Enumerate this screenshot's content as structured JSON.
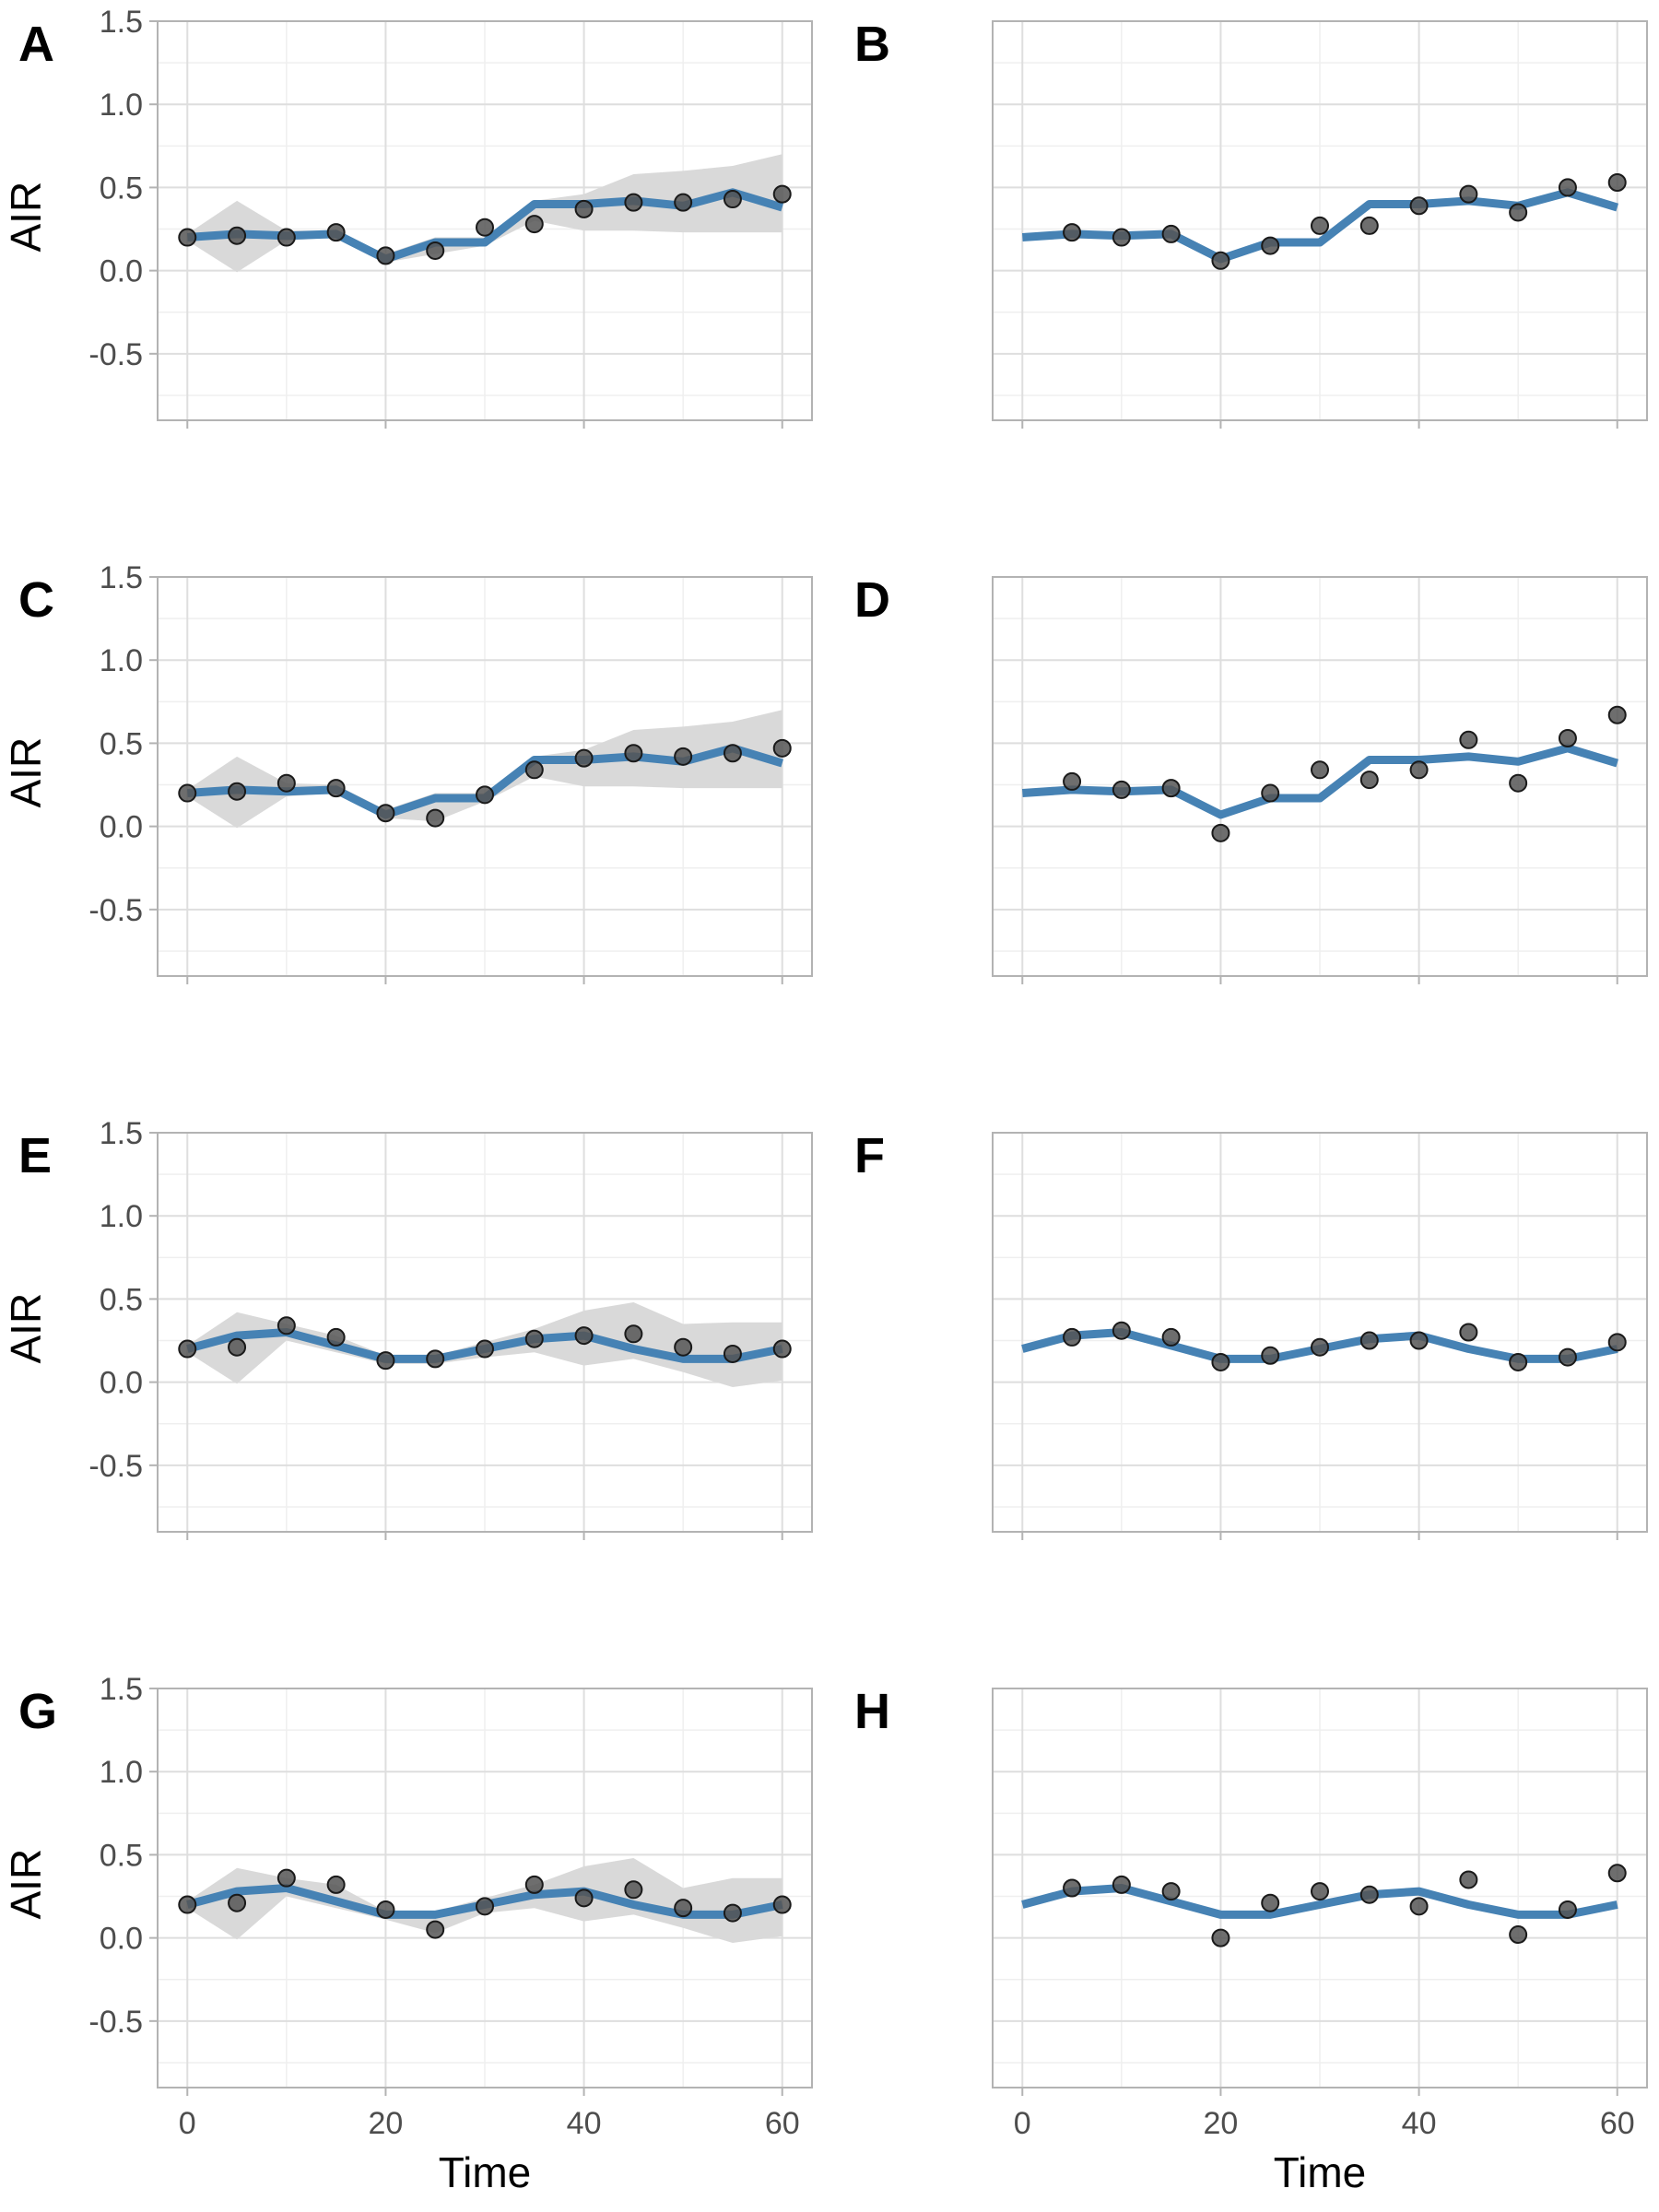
{
  "layout": {
    "columns": 2,
    "rows": 4
  },
  "colors": {
    "line": "#4682b4",
    "ribbon": "#d9d9d9",
    "point_fill": "#555555",
    "point_stroke": "#1a1a1a",
    "grid_major": "#dedede",
    "grid_minor": "#efefef",
    "panel_border": "#b3b3b3"
  },
  "chart_data": [
    {
      "panel": "A",
      "type": "line",
      "ylabel": "AIR",
      "xlabel": "",
      "ylim": [
        -0.9,
        1.5
      ],
      "xlim": [
        -3,
        63
      ],
      "yticks": [
        "-0.5",
        "0.0",
        "0.5",
        "1.0",
        "1.5"
      ],
      "xticks": [],
      "x": [
        0,
        5,
        10,
        15,
        20,
        25,
        30,
        35,
        40,
        45,
        50,
        55,
        60
      ],
      "line": [
        0.2,
        0.22,
        0.21,
        0.22,
        0.07,
        0.17,
        0.17,
        0.4,
        0.4,
        0.42,
        0.39,
        0.47,
        0.38
      ],
      "ribbon_lower": [
        0.18,
        -0.01,
        0.18,
        0.2,
        0.05,
        0.1,
        0.15,
        0.3,
        0.24,
        0.24,
        0.23,
        0.23,
        0.23
      ],
      "ribbon_upper": [
        0.22,
        0.42,
        0.24,
        0.24,
        0.1,
        0.2,
        0.2,
        0.42,
        0.46,
        0.58,
        0.6,
        0.63,
        0.7
      ],
      "points": [
        0.2,
        0.21,
        0.2,
        0.23,
        0.09,
        0.12,
        0.26,
        0.28,
        0.37,
        0.41,
        0.41,
        0.43,
        0.46
      ]
    },
    {
      "panel": "B",
      "type": "line",
      "ylabel": "",
      "xlabel": "",
      "ylim": [
        -0.9,
        1.5
      ],
      "xlim": [
        -3,
        63
      ],
      "yticks": [],
      "xticks": [],
      "x": [
        0,
        5,
        10,
        15,
        20,
        25,
        30,
        35,
        40,
        45,
        50,
        55,
        60
      ],
      "line": [
        0.2,
        0.22,
        0.21,
        0.22,
        0.07,
        0.17,
        0.17,
        0.4,
        0.4,
        0.42,
        0.39,
        0.47,
        0.38
      ],
      "ribbon_lower": [],
      "ribbon_upper": [],
      "points": [
        null,
        0.23,
        0.2,
        0.22,
        0.06,
        0.15,
        0.27,
        0.27,
        0.39,
        0.46,
        0.35,
        0.5,
        0.53
      ]
    },
    {
      "panel": "C",
      "type": "line",
      "ylabel": "AIR",
      "xlabel": "",
      "ylim": [
        -0.9,
        1.5
      ],
      "xlim": [
        -3,
        63
      ],
      "yticks": [
        "-0.5",
        "0.0",
        "0.5",
        "1.0",
        "1.5"
      ],
      "xticks": [],
      "x": [
        0,
        5,
        10,
        15,
        20,
        25,
        30,
        35,
        40,
        45,
        50,
        55,
        60
      ],
      "line": [
        0.2,
        0.22,
        0.21,
        0.22,
        0.07,
        0.17,
        0.17,
        0.4,
        0.4,
        0.42,
        0.39,
        0.47,
        0.38
      ],
      "ribbon_lower": [
        0.18,
        -0.01,
        0.18,
        0.2,
        0.05,
        0.03,
        0.15,
        0.3,
        0.24,
        0.24,
        0.23,
        0.23,
        0.23
      ],
      "ribbon_upper": [
        0.22,
        0.42,
        0.26,
        0.25,
        0.1,
        0.2,
        0.2,
        0.42,
        0.46,
        0.58,
        0.6,
        0.63,
        0.7
      ],
      "points": [
        0.2,
        0.21,
        0.26,
        0.23,
        0.08,
        0.05,
        0.19,
        0.34,
        0.41,
        0.44,
        0.42,
        0.44,
        0.47
      ]
    },
    {
      "panel": "D",
      "type": "line",
      "ylabel": "",
      "xlabel": "",
      "ylim": [
        -0.9,
        1.5
      ],
      "xlim": [
        -3,
        63
      ],
      "yticks": [],
      "xticks": [],
      "x": [
        0,
        5,
        10,
        15,
        20,
        25,
        30,
        35,
        40,
        45,
        50,
        55,
        60
      ],
      "line": [
        0.2,
        0.22,
        0.21,
        0.22,
        0.07,
        0.17,
        0.17,
        0.4,
        0.4,
        0.42,
        0.39,
        0.47,
        0.38
      ],
      "ribbon_lower": [],
      "ribbon_upper": [],
      "points": [
        null,
        0.27,
        0.22,
        0.23,
        -0.04,
        0.2,
        0.34,
        0.28,
        0.34,
        0.52,
        0.26,
        0.53,
        0.67
      ]
    },
    {
      "panel": "E",
      "type": "line",
      "ylabel": "AIR",
      "xlabel": "",
      "ylim": [
        -0.9,
        1.5
      ],
      "xlim": [
        -3,
        63
      ],
      "yticks": [
        "-0.5",
        "0.0",
        "0.5",
        "1.0",
        "1.5"
      ],
      "xticks": [],
      "x": [
        0,
        5,
        10,
        15,
        20,
        25,
        30,
        35,
        40,
        45,
        50,
        55,
        60
      ],
      "line": [
        0.2,
        0.28,
        0.3,
        0.22,
        0.14,
        0.14,
        0.2,
        0.26,
        0.28,
        0.2,
        0.14,
        0.14,
        0.2
      ],
      "ribbon_lower": [
        0.18,
        -0.01,
        0.25,
        0.18,
        0.11,
        0.11,
        0.15,
        0.18,
        0.1,
        0.14,
        0.06,
        -0.03,
        0.01
      ],
      "ribbon_upper": [
        0.22,
        0.42,
        0.35,
        0.28,
        0.16,
        0.16,
        0.24,
        0.32,
        0.43,
        0.48,
        0.35,
        0.36,
        0.36
      ],
      "points": [
        0.2,
        0.21,
        0.34,
        0.27,
        0.13,
        0.14,
        0.2,
        0.26,
        0.28,
        0.29,
        0.21,
        0.17,
        0.2
      ]
    },
    {
      "panel": "F",
      "type": "line",
      "ylabel": "",
      "xlabel": "",
      "ylim": [
        -0.9,
        1.5
      ],
      "xlim": [
        -3,
        63
      ],
      "yticks": [],
      "xticks": [],
      "x": [
        0,
        5,
        10,
        15,
        20,
        25,
        30,
        35,
        40,
        45,
        50,
        55,
        60
      ],
      "line": [
        0.2,
        0.28,
        0.3,
        0.22,
        0.14,
        0.14,
        0.2,
        0.26,
        0.28,
        0.2,
        0.14,
        0.14,
        0.2
      ],
      "ribbon_lower": [],
      "ribbon_upper": [],
      "points": [
        null,
        0.27,
        0.31,
        0.27,
        0.12,
        0.16,
        0.21,
        0.25,
        0.25,
        0.3,
        0.12,
        0.15,
        0.24
      ]
    },
    {
      "panel": "G",
      "type": "line",
      "ylabel": "AIR",
      "xlabel": "",
      "ylim": [
        -0.9,
        1.5
      ],
      "xlim": [
        -3,
        63
      ],
      "yticks": [
        "-0.5",
        "0.0",
        "0.5",
        "1.0",
        "1.5"
      ],
      "xticks": [],
      "x": [
        0,
        5,
        10,
        15,
        20,
        25,
        30,
        35,
        40,
        45,
        50,
        55,
        60
      ],
      "line": [
        0.2,
        0.28,
        0.3,
        0.22,
        0.14,
        0.14,
        0.2,
        0.26,
        0.28,
        0.2,
        0.14,
        0.14,
        0.2
      ],
      "ribbon_lower": [
        0.18,
        -0.01,
        0.25,
        0.18,
        0.11,
        0.03,
        0.15,
        0.18,
        0.1,
        0.14,
        0.06,
        -0.03,
        0.01
      ],
      "ribbon_upper": [
        0.22,
        0.42,
        0.36,
        0.32,
        0.16,
        0.16,
        0.24,
        0.32,
        0.43,
        0.48,
        0.3,
        0.36,
        0.36
      ],
      "points": [
        0.2,
        0.21,
        0.36,
        0.32,
        0.17,
        0.05,
        0.19,
        0.32,
        0.24,
        0.29,
        0.18,
        0.15,
        0.2
      ]
    },
    {
      "panel": "H",
      "type": "line",
      "ylabel": "",
      "xlabel": "",
      "ylim": [
        -0.9,
        1.5
      ],
      "xlim": [
        -3,
        63
      ],
      "yticks": [],
      "xticks": [],
      "x": [
        0,
        5,
        10,
        15,
        20,
        25,
        30,
        35,
        40,
        45,
        50,
        55,
        60
      ],
      "line": [
        0.2,
        0.28,
        0.3,
        0.22,
        0.14,
        0.14,
        0.2,
        0.26,
        0.28,
        0.2,
        0.14,
        0.14,
        0.2
      ],
      "ribbon_lower": [],
      "ribbon_upper": [],
      "points": [
        null,
        0.3,
        0.32,
        0.28,
        0.0,
        0.21,
        0.28,
        0.26,
        0.19,
        0.35,
        0.02,
        0.17,
        0.39
      ]
    }
  ],
  "bottom_axes": {
    "xticks": [
      "0",
      "20",
      "40",
      "60"
    ],
    "xtick_values": [
      0,
      20,
      40,
      60
    ],
    "xlabel": "Time"
  }
}
